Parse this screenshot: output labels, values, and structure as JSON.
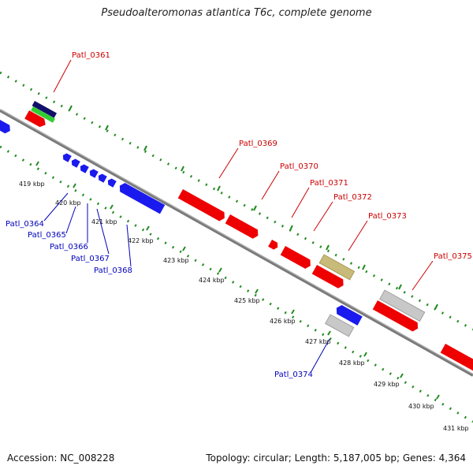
{
  "title": "Pseudoalteromonas atlantica T6c, complete genome",
  "footer": {
    "accession": "Accession: NC_008228",
    "stats": "Topology: circular; Length: 5,187,005 bp; Genes: 4,364"
  },
  "colors": {
    "forward": "#ee0000",
    "reverse": "#1a1aee",
    "label_forward": "#cc0000",
    "label_reverse": "#0000bb",
    "backbone": "#808080",
    "ticks": "#228b22",
    "grey_gene": "#c8c8c8",
    "olive_gene": "#c8bb7a",
    "navy_gene": "#10106a",
    "green_gene": "#33cc33"
  },
  "kbp_labels": [
    "419 kbp",
    "420 kbp",
    "421 kbp",
    "422 kbp",
    "423 kbp",
    "424 kbp",
    "425 kbp",
    "426 kbp",
    "427 kbp",
    "428 kbp",
    "429 kbp",
    "430 kbp",
    "431 kbp"
  ],
  "gene_labels": {
    "patl_0361": "Patl_0361",
    "patl_0364": "Patl_0364",
    "patl_0365": "Patl_0365",
    "patl_0366": "Patl_0366",
    "patl_0367": "Patl_0367",
    "patl_0368": "Patl_0368",
    "patl_0369": "Patl_0369",
    "patl_0370": "Patl_0370",
    "patl_0371": "Patl_0371",
    "patl_0372": "Patl_0372",
    "patl_0373": "Patl_0373",
    "patl_0374": "Patl_0374",
    "patl_0375": "Patl_0375"
  }
}
